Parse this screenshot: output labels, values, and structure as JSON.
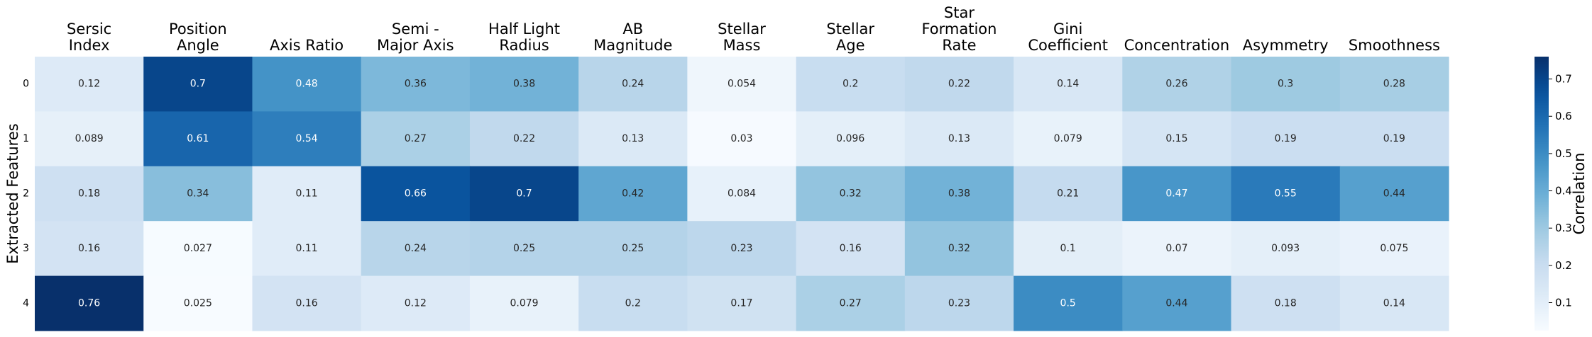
{
  "chart_data": {
    "type": "heatmap",
    "colormap": "Blues",
    "x_categories": [
      [
        "Sersic",
        "Index"
      ],
      [
        "Position",
        "Angle"
      ],
      [
        "Axis Ratio"
      ],
      [
        "Semi -",
        "Major Axis"
      ],
      [
        "Half Light",
        "Radius"
      ],
      [
        "AB",
        "Magnitude"
      ],
      [
        "Stellar",
        "Mass"
      ],
      [
        "Stellar",
        "Age"
      ],
      [
        "Star",
        "Formation",
        "Rate"
      ],
      [
        "Gini",
        "Coefficient"
      ],
      [
        "Concentration"
      ],
      [
        "Asymmetry"
      ],
      [
        "Smoothness"
      ]
    ],
    "y_categories": [
      "0",
      "1",
      "2",
      "3",
      "4"
    ],
    "ylabel": "Extracted Features",
    "values": [
      [
        "0.12",
        "0.7",
        "0.48",
        "0.36",
        "0.38",
        "0.24",
        "0.054",
        "0.2",
        "0.22",
        "0.14",
        "0.26",
        "0.3",
        "0.28"
      ],
      [
        "0.089",
        "0.61",
        "0.54",
        "0.27",
        "0.22",
        "0.13",
        "0.03",
        "0.096",
        "0.13",
        "0.079",
        "0.15",
        "0.19",
        "0.19"
      ],
      [
        "0.18",
        "0.34",
        "0.11",
        "0.66",
        "0.7",
        "0.42",
        "0.084",
        "0.32",
        "0.38",
        "0.21",
        "0.47",
        "0.55",
        "0.44"
      ],
      [
        "0.16",
        "0.027",
        "0.11",
        "0.24",
        "0.25",
        "0.25",
        "0.23",
        "0.16",
        "0.32",
        "0.1",
        "0.07",
        "0.093",
        "0.075"
      ],
      [
        "0.76",
        "0.025",
        "0.16",
        "0.12",
        "0.079",
        "0.2",
        "0.17",
        "0.27",
        "0.23",
        "0.5",
        "0.44",
        "0.18",
        "0.14"
      ]
    ],
    "colorbar": {
      "label": "Correlation",
      "range": [
        0.025,
        0.76
      ],
      "ticks": [
        "0.1",
        "0.2",
        "0.3",
        "0.4",
        "0.5",
        "0.6",
        "0.7"
      ]
    }
  }
}
